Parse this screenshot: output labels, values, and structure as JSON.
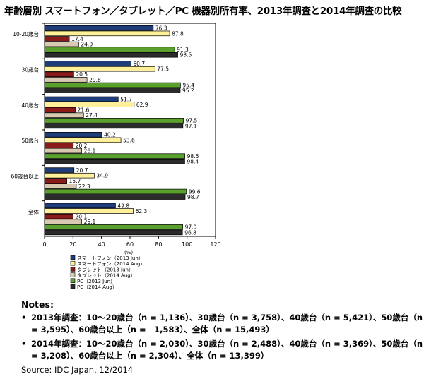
{
  "chart_data": {
    "type": "bar",
    "orientation": "horizontal",
    "title": "年齢層別 スマートフォン／タブレット／PC 機器別所有率、2013年調査と2014年調査の比較",
    "categories": [
      "10-20歳台",
      "30歳台",
      "40歳台",
      "50歳台",
      "60歳台以上",
      "全体"
    ],
    "series": [
      {
        "name": "スマートフォン（2013 Jun）",
        "color": "#1f3d7a",
        "values": [
          76.3,
          60.7,
          51.7,
          40.2,
          20.7,
          49.8
        ],
        "labels": [
          "76.3",
          "60.7",
          "51.7",
          "40.2",
          "20.7",
          "49.8"
        ]
      },
      {
        "name": "スマートフォン（2014 Aug）",
        "color": "#fff099",
        "values": [
          87.8,
          77.5,
          62.9,
          53.6,
          34.9,
          62.3
        ],
        "labels": [
          "87.8",
          "77.5",
          "62.9",
          "53.6",
          "34.9",
          "62.3"
        ]
      },
      {
        "name": "タブレット（2013 Jun）",
        "color": "#8b1a1a",
        "values": [
          17.4,
          20.5,
          21.6,
          20.2,
          15.7,
          20.1
        ],
        "labels": [
          "17.4",
          "20.5",
          "21.6",
          "20.2",
          "15.7",
          "20.1"
        ]
      },
      {
        "name": "タブレット（2014 Aug）",
        "color": "#d9c9b0",
        "values": [
          24.0,
          29.8,
          27.4,
          26.1,
          22.3,
          26.1
        ],
        "labels": [
          "24.0",
          "29.8",
          "27.4",
          "26.1",
          "22.3",
          "26.1"
        ]
      },
      {
        "name": "PC（2013 Jun）",
        "color": "#5aa02c",
        "values": [
          91.3,
          95.4,
          97.5,
          98.5,
          99.6,
          97.0
        ],
        "labels": [
          "91.3",
          "95.4",
          "97.5",
          "98.5",
          "99.6",
          "97.0"
        ]
      },
      {
        "name": "PC（2014 Aug）",
        "color": "#2b2b2b",
        "values": [
          93.5,
          95.2,
          97.1,
          98.4,
          98.7,
          96.8
        ],
        "labels": [
          "93.5",
          "95.2",
          "97.1",
          "98.4",
          "98.7",
          "96.8"
        ]
      }
    ],
    "xlim": [
      0,
      120
    ],
    "xticks": [
      "0",
      "20",
      "40",
      "60",
      "80",
      "100",
      "120"
    ],
    "xlabel": "(%)",
    "grid": false,
    "legend_position": "bottom"
  },
  "notes": {
    "heading": "Notes:",
    "items": [
      "2013年調査：10～20歳台（n = 1,136）、30歳台（n = 3,758）、40歳台（n = 5,421）、50歳台（n = 3,595）、60歳台以上（n =　1,583）、全体（n = 15,493）",
      "2014年調査：10～20歳台（n = 2,030）、30歳台（n = 2,488）、40歳台（n = 3,369）、50歳台（n = 3,208）、60歳台以上（n = 2,304）、全体（n = 13,399）"
    ]
  },
  "source": "Source: IDC Japan, 12/2014"
}
